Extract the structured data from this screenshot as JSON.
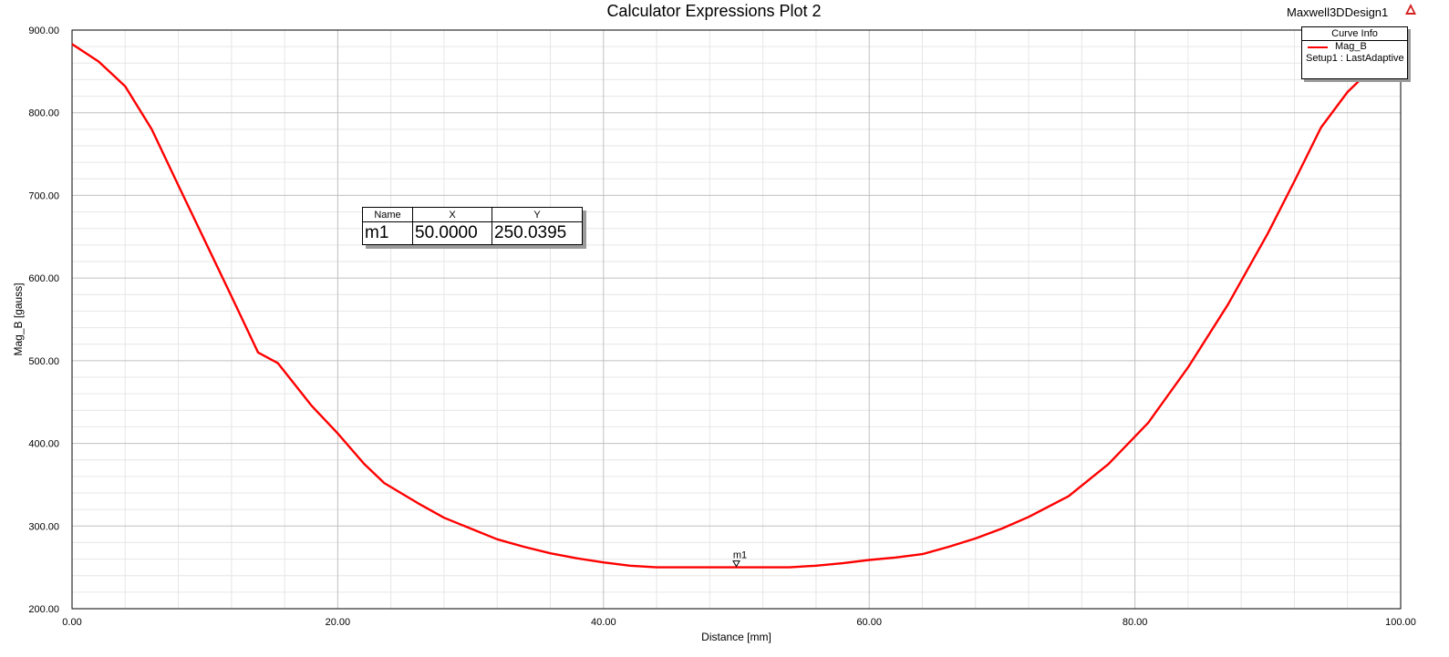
{
  "design": {
    "name": "Maxwell3DDesign1"
  },
  "legend": {
    "title": "Curve Info",
    "entries": [
      {
        "name": "Mag_B",
        "source": "Setup1 : LastAdaptive",
        "color": "#ff0000"
      }
    ]
  },
  "marker_table": {
    "headers": [
      "Name",
      "X",
      "Y"
    ],
    "rows": [
      {
        "name": "m1",
        "x": "50.0000",
        "y": "250.0395"
      }
    ]
  },
  "chart_data": {
    "type": "line",
    "title": "Calculator Expressions Plot 2",
    "xlabel": "Distance [mm]",
    "ylabel": "Mag_B [gauss]",
    "xlim": [
      0,
      100
    ],
    "ylim": [
      200,
      900
    ],
    "x_ticks": [
      "0.00",
      "20.00",
      "40.00",
      "60.00",
      "80.00",
      "100.00"
    ],
    "y_ticks": [
      "200.00",
      "300.00",
      "400.00",
      "500.00",
      "600.00",
      "700.00",
      "800.00",
      "900.00"
    ],
    "grid": true,
    "legend_position": "top-right",
    "series": [
      {
        "name": "Mag_B",
        "color": "#ff0000",
        "x": [
          0,
          2,
          4,
          6,
          8,
          10,
          12,
          14,
          15.5,
          18,
          20,
          22,
          23.5,
          26,
          28,
          30,
          32,
          34,
          36,
          38,
          40,
          42,
          44,
          46,
          48,
          50,
          52,
          54,
          56,
          58,
          60,
          62,
          64,
          66,
          68,
          70,
          72,
          75,
          78,
          81,
          84,
          87,
          90,
          92,
          94,
          96,
          98,
          100
        ],
        "y": [
          883,
          862,
          832,
          780,
          712,
          645,
          578,
          510,
          497,
          446,
          412,
          375,
          352,
          328,
          310,
          297,
          284,
          275,
          267,
          261,
          256,
          252,
          250,
          250,
          250,
          250,
          250,
          250,
          252,
          255,
          259,
          262,
          266,
          275,
          285,
          297,
          311,
          336,
          375,
          425,
          492,
          568,
          654,
          717,
          782,
          825,
          856,
          880
        ]
      }
    ],
    "markers": [
      {
        "name": "m1",
        "x": 50,
        "y": 250.0395
      }
    ]
  }
}
